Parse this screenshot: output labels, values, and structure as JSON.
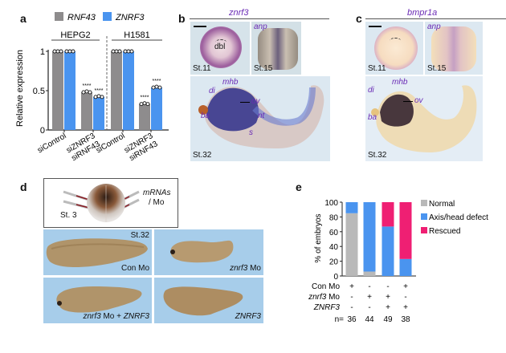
{
  "panels": {
    "a": {
      "letter": "a"
    },
    "b": {
      "letter": "b",
      "gene": "znrf3",
      "scale_bar": true,
      "images": [
        {
          "stage": "St.11",
          "label": "dbl"
        },
        {
          "stage": "St.15",
          "label": "anp"
        },
        {
          "stage": "St.32",
          "labels": [
            "mhb",
            "di",
            "ov",
            "ba",
            "nt",
            "s"
          ]
        }
      ]
    },
    "c": {
      "letter": "c",
      "gene": "bmpr1a",
      "scale_bar": true,
      "images": [
        {
          "stage": "St.11"
        },
        {
          "stage": "St.15",
          "label": "anp"
        },
        {
          "stage": "St.32",
          "labels": [
            "mhb",
            "di",
            "ov",
            "ba"
          ]
        }
      ]
    },
    "d": {
      "letter": "d",
      "diagram": {
        "stage": "St. 3",
        "injection_label_1": "mRNAs",
        "injection_label_2": "/ Mo"
      },
      "stage_label": "St.32",
      "images": [
        {
          "label": "Con Mo"
        },
        {
          "label_italic": "znrf3",
          "label_rest": " Mo"
        },
        {
          "label_italic": "znrf3",
          "label_rest": " Mo + ",
          "label_italic2": "ZNRF3"
        },
        {
          "label_italic": "ZNRF3"
        }
      ]
    },
    "e": {
      "letter": "e"
    }
  },
  "colors": {
    "rnf43": "#8e8c8d",
    "znrf3": "#4a94ef",
    "normal": "#b9b9b9",
    "defect": "#4a94ef",
    "rescued": "#ef1f73"
  },
  "chart_data": [
    {
      "type": "bar",
      "panel": "a",
      "ylabel": "Relative expression",
      "ylim": [
        0,
        1
      ],
      "yticks": [
        "0",
        "0.5",
        "1"
      ],
      "legend": [
        {
          "name": "RNF43",
          "italic": true
        },
        {
          "name": "ZNRF3",
          "italic": true
        }
      ],
      "legend_position": "top",
      "groups": [
        {
          "name": "HEPG2",
          "categories": [
            {
              "label": "siControl",
              "values": [
                1.0,
                1.0
              ],
              "sig": [
                "",
                ""
              ]
            },
            {
              "label": "siZNRF3\nsiRNF43",
              "values": [
                0.48,
                0.42
              ],
              "sig": [
                "****",
                "****"
              ]
            }
          ]
        },
        {
          "name": "H1581",
          "categories": [
            {
              "label": "siControl",
              "values": [
                1.0,
                1.0
              ],
              "sig": [
                "",
                ""
              ]
            },
            {
              "label": "siZNRF3\nsiRNF43",
              "values": [
                0.33,
                0.54
              ],
              "sig": [
                "****",
                "****"
              ]
            }
          ]
        }
      ],
      "series": [
        {
          "name": "RNF43",
          "values": [
            1.0,
            0.48,
            1.0,
            0.33
          ]
        },
        {
          "name": "ZNRF3",
          "values": [
            1.0,
            0.42,
            1.0,
            0.54
          ]
        }
      ]
    },
    {
      "type": "bar",
      "stacked": true,
      "panel": "e",
      "ylabel": "% of embryos",
      "ylim": [
        0,
        100
      ],
      "yticks": [
        "0",
        "20",
        "40",
        "60",
        "80",
        "100"
      ],
      "legend_position": "right",
      "series": [
        {
          "name": "Normal",
          "values": [
            85,
            6,
            0,
            0
          ]
        },
        {
          "name": "Axis/head defect",
          "values": [
            15,
            94,
            67,
            23
          ]
        },
        {
          "name": "Rescued",
          "values": [
            0,
            0,
            33,
            77
          ]
        }
      ],
      "conditions": [
        {
          "name": "Con Mo",
          "italic": false,
          "values": [
            "+",
            "-",
            "-",
            "+"
          ]
        },
        {
          "name": "znrf3",
          "suffix": " Mo",
          "italic": true,
          "values": [
            "-",
            "+",
            "+",
            "-"
          ]
        },
        {
          "name": "ZNRF3",
          "italic": true,
          "values": [
            "-",
            "-",
            "+",
            "+"
          ]
        }
      ],
      "n_label": "n=",
      "n_values": [
        "36",
        "44",
        "49",
        "38"
      ]
    }
  ]
}
